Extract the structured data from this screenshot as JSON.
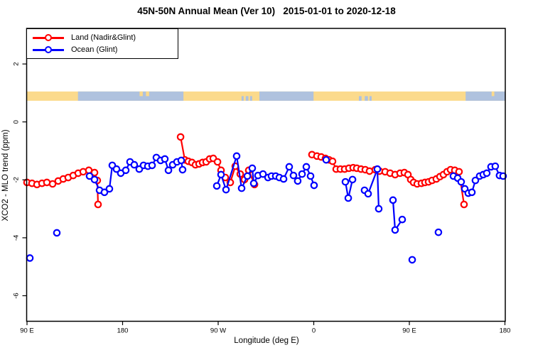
{
  "title": "45N-50N Annual Mean (Ver 10)   2015-01-01 to 2020-12-18",
  "legend": {
    "items": [
      {
        "label": "Land (Nadir&Glint)",
        "color": "#FF0000"
      },
      {
        "label": "Ocean (Glint)",
        "color": "#0000FF"
      }
    ]
  },
  "axes": {
    "x_label": "Longitude (deg E)",
    "y_label": "XCO2 - MLO trend (ppm)",
    "x_ticks": [
      {
        "label": "90 E",
        "lon": 90
      },
      {
        "label": "180",
        "lon": 180
      },
      {
        "label": "90 W",
        "lon": 270
      },
      {
        "label": "0",
        "lon": 360
      },
      {
        "label": "90 E",
        "lon": 450
      },
      {
        "label": "180",
        "lon": 540
      }
    ],
    "y_ticks": [
      {
        "label": "2",
        "v": 2
      },
      {
        "label": "0",
        "v": 0
      },
      {
        "label": "-2",
        "v": -2
      },
      {
        "label": "-4",
        "v": -4
      },
      {
        "label": "-6",
        "v": -6
      }
    ]
  },
  "chart_data": {
    "type": "line",
    "title": "45N-50N Annual Mean (Ver 10)   2015-01-01 to 2020-12-18",
    "xlabel": "Longitude (deg E)",
    "ylabel": "XCO2 - MLO trend (ppm)",
    "x_axis_note": "extended longitude axis: 90E wraps around globe to 180 (90..540 deg)",
    "xlim": [
      90,
      540
    ],
    "ylim": [
      -6.9,
      3.2
    ],
    "grid": false,
    "legend_position": "top-left inside plot",
    "marker": "open-circle",
    "series": [
      {
        "name": "Land (Nadir&Glint)",
        "color": "#FF0000",
        "segments": [
          [
            [
              90,
              -2.09
            ],
            [
              94.7,
              -2.12
            ],
            [
              99.4,
              -2.16
            ],
            [
              104.1,
              -2.12
            ],
            [
              108.7,
              -2.09
            ],
            [
              114.1,
              -2.14
            ],
            [
              119.4,
              -2.04
            ],
            [
              124.1,
              -1.97
            ],
            [
              128.8,
              -1.92
            ],
            [
              133.5,
              -1.85
            ],
            [
              138.2,
              -1.77
            ],
            [
              142.9,
              -1.72
            ],
            [
              148.2,
              -1.67
            ],
            [
              153.6,
              -1.75
            ],
            [
              156.2,
              -2.02
            ],
            [
              156.9,
              -2.85
            ]
          ],
          [
            [
              234.6,
              -0.52
            ],
            [
              238.6,
              -1.31
            ],
            [
              241.9,
              -1.36
            ],
            [
              245.3,
              -1.4
            ],
            [
              248.6,
              -1.48
            ],
            [
              252.0,
              -1.45
            ],
            [
              255.3,
              -1.4
            ],
            [
              258.7,
              -1.38
            ],
            [
              262.0,
              -1.28
            ],
            [
              265.4,
              -1.26
            ],
            [
              269.4,
              -1.38
            ],
            [
              272.7,
              -1.67
            ],
            [
              276.7,
              -1.92
            ],
            [
              281.4,
              -2.09
            ],
            [
              286.1,
              -1.53
            ],
            [
              290.8,
              -1.8
            ],
            [
              294.8,
              -1.99
            ],
            [
              298.8,
              -1.67
            ],
            [
              304.2,
              -2.16
            ]
          ],
          [
            [
              358.3,
              -1.13
            ],
            [
              363.0,
              -1.18
            ],
            [
              367.0,
              -1.21
            ],
            [
              371.0,
              -1.26
            ],
            [
              374.4,
              -1.31
            ],
            [
              377.7,
              -1.36
            ],
            [
              381.1,
              -1.63
            ],
            [
              385.1,
              -1.63
            ],
            [
              389.1,
              -1.63
            ],
            [
              393.1,
              -1.6
            ],
            [
              397.1,
              -1.58
            ],
            [
              400.5,
              -1.6
            ],
            [
              404.5,
              -1.63
            ],
            [
              408.5,
              -1.65
            ],
            [
              412.5,
              -1.7
            ],
            [
              417.9,
              -1.65
            ],
            [
              421.9,
              -1.7
            ],
            [
              427.2,
              -1.72
            ],
            [
              431.9,
              -1.77
            ],
            [
              436.6,
              -1.82
            ],
            [
              441.3,
              -1.77
            ],
            [
              445.3,
              -1.75
            ],
            [
              448.7,
              -1.82
            ],
            [
              451.3,
              -1.99
            ],
            [
              454.0,
              -2.09
            ],
            [
              457.4,
              -2.14
            ],
            [
              461.4,
              -2.12
            ],
            [
              464.7,
              -2.09
            ],
            [
              468.1,
              -2.07
            ],
            [
              471.4,
              -2.02
            ],
            [
              475.4,
              -1.97
            ],
            [
              478.8,
              -1.89
            ],
            [
              482.1,
              -1.82
            ],
            [
              485.5,
              -1.72
            ],
            [
              488.8,
              -1.65
            ],
            [
              492.8,
              -1.67
            ],
            [
              496.8,
              -1.72
            ],
            [
              501.5,
              -2.85
            ]
          ]
        ]
      },
      {
        "name": "Ocean (Glint)",
        "color": "#0000FF",
        "segments": [
          [
            [
              92.7,
              -4.7
            ]
          ],
          [
            [
              118.1,
              -3.83
            ]
          ],
          [
            [
              148.9,
              -1.87
            ],
            [
              153.6,
              -1.99
            ],
            [
              158.3,
              -2.36
            ],
            [
              162.9,
              -2.43
            ],
            [
              167.6,
              -2.31
            ],
            [
              170.3,
              -1.5
            ],
            [
              174.3,
              -1.63
            ],
            [
              178.3,
              -1.77
            ],
            [
              183.0,
              -1.67
            ],
            [
              187.0,
              -1.38
            ],
            [
              191.0,
              -1.48
            ],
            [
              195.7,
              -1.63
            ],
            [
              199.7,
              -1.5
            ],
            [
              203.8,
              -1.53
            ],
            [
              207.8,
              -1.5
            ],
            [
              211.8,
              -1.23
            ],
            [
              215.8,
              -1.33
            ],
            [
              219.8,
              -1.28
            ],
            [
              223.2,
              -1.67
            ],
            [
              227.2,
              -1.48
            ],
            [
              231.2,
              -1.38
            ],
            [
              235.2,
              -1.33
            ],
            [
              236.5,
              -1.65
            ]
          ],
          [
            [
              268.7,
              -2.21
            ],
            [
              272.7,
              -1.82
            ],
            [
              277.4,
              -2.34
            ],
            [
              287.4,
              -1.18
            ],
            [
              292.1,
              -2.29
            ],
            [
              297.5,
              -1.87
            ],
            [
              302.1,
              -1.6
            ],
            [
              303.5,
              -2.12
            ],
            [
              307.5,
              -1.85
            ],
            [
              312.2,
              -1.8
            ],
            [
              316.9,
              -1.92
            ],
            [
              320.2,
              -1.87
            ],
            [
              324.2,
              -1.87
            ],
            [
              327.6,
              -1.92
            ],
            [
              331.6,
              -1.97
            ],
            [
              336.9,
              -1.55
            ],
            [
              340.9,
              -1.85
            ],
            [
              344.9,
              -2.04
            ],
            [
              349.0,
              -1.8
            ],
            [
              353.0,
              -1.55
            ],
            [
              357.0,
              -1.87
            ],
            [
              360.3,
              -2.19
            ]
          ],
          [
            [
              371.7,
              -1.31
            ]
          ],
          [
            [
              389.8,
              -2.07
            ],
            [
              392.5,
              -2.63
            ],
            [
              396.5,
              -1.99
            ]
          ],
          [
            [
              407.8,
              -2.36
            ],
            [
              411.2,
              -2.48
            ],
            [
              419.9,
              -1.63
            ],
            [
              421.2,
              -3.0
            ]
          ],
          [
            [
              434.6,
              -2.7
            ],
            [
              436.6,
              -3.73
            ],
            [
              443.3,
              -3.37
            ]
          ],
          [
            [
              452.7,
              -4.76
            ]
          ],
          [
            [
              477.4,
              -3.81
            ]
          ],
          [
            [
              491.5,
              -1.87
            ],
            [
              495.5,
              -1.94
            ],
            [
              498.8,
              -2.07
            ],
            [
              502.2,
              -2.31
            ],
            [
              505.5,
              -2.46
            ],
            [
              508.9,
              -2.43
            ],
            [
              512.2,
              -2.02
            ],
            [
              516.2,
              -1.87
            ],
            [
              519.6,
              -1.82
            ],
            [
              522.9,
              -1.77
            ],
            [
              526.9,
              -1.55
            ],
            [
              530.9,
              -1.53
            ],
            [
              534.9,
              -1.85
            ],
            [
              538.3,
              -1.87
            ]
          ]
        ]
      }
    ],
    "land_ocean_strip": {
      "description": "land/ocean mask band along longitude",
      "y_band_values": [
        0.73,
        1.05
      ],
      "land_color": "#FBDA8C",
      "ocean_color": "#AFC2DE",
      "ocean_segments_lon": [
        [
          138,
          237.3
        ],
        [
          308.8,
          359.8
        ],
        [
          503,
          540
        ]
      ],
      "ocean_speckles_lon": [
        [
          292,
          294
        ],
        [
          296,
          298.5
        ],
        [
          300,
          302
        ],
        [
          402.5,
          405
        ],
        [
          408,
          411
        ],
        [
          412.5,
          414.5
        ]
      ],
      "land_speckles_lon": [
        [
          196,
          199
        ],
        [
          202,
          205
        ],
        [
          527.5,
          530
        ]
      ]
    }
  }
}
